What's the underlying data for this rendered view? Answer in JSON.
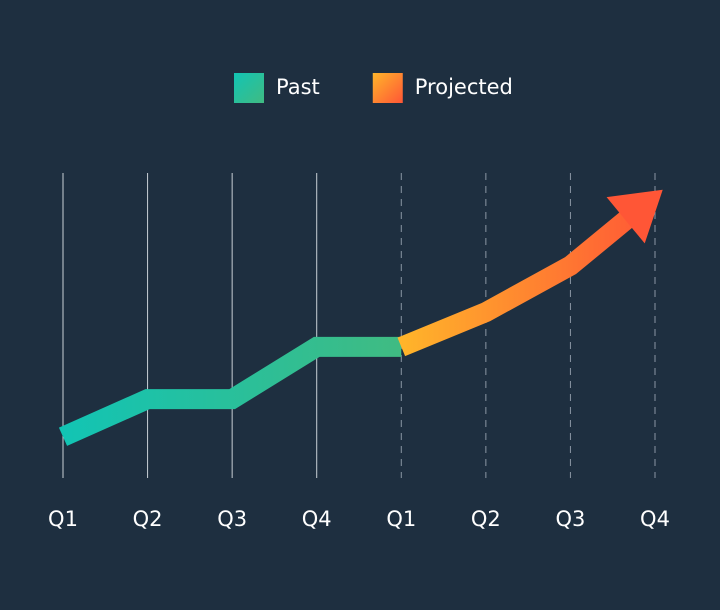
{
  "chart_data": {
    "type": "line",
    "categories": [
      "Q1",
      "Q2",
      "Q3",
      "Q4",
      "Q1",
      "Q2",
      "Q3",
      "Q4"
    ],
    "series": [
      {
        "name": "Past",
        "colors": [
          "#12c4b4",
          "#40bb82"
        ],
        "values": [
          8,
          21,
          21,
          39,
          39,
          null,
          null,
          null
        ]
      },
      {
        "name": "Projected",
        "colors": [
          "#ffb52a",
          "#ff5636"
        ],
        "values": [
          null,
          null,
          null,
          null,
          39,
          51,
          67,
          91
        ]
      }
    ],
    "ylim": [
      0,
      100
    ],
    "arrow": true
  }
}
